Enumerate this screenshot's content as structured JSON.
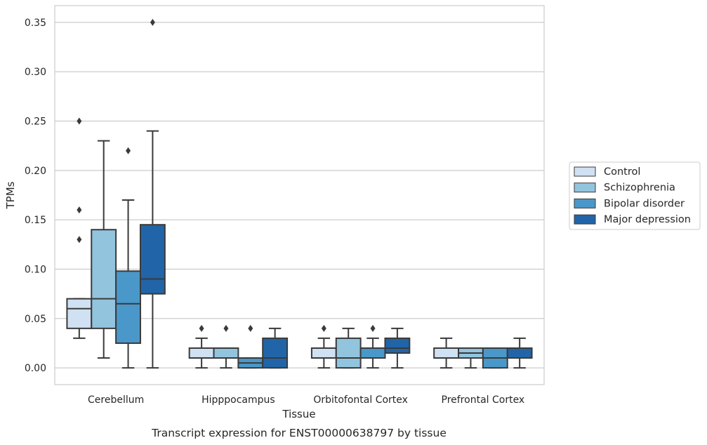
{
  "chart_data": {
    "type": "boxplot",
    "title": "",
    "caption": "Transcript expression for ENST00000638797 by tissue",
    "xlabel": "Tissue",
    "ylabel": "TPMs",
    "ylim": [
      -0.017,
      0.367
    ],
    "yticks": [
      "0.00",
      "0.05",
      "0.10",
      "0.15",
      "0.20",
      "0.25",
      "0.30",
      "0.35"
    ],
    "grid": "horizontal",
    "legend_position": "right",
    "categories": [
      "Cerebellum",
      "Hipppocampus",
      "Orbitofontal Cortex",
      "Prefrontal Cortex"
    ],
    "series": [
      {
        "name": "Control",
        "color": "#cfe1f2",
        "boxes": [
          {
            "q1": 0.04,
            "median": 0.06,
            "q3": 0.07,
            "whisker_low": 0.03,
            "whisker_high": 0.07,
            "outliers": [
              0.13,
              0.16,
              0.25
            ]
          },
          {
            "q1": 0.01,
            "median": 0.01,
            "q3": 0.02,
            "whisker_low": 0.0,
            "whisker_high": 0.03,
            "outliers": [
              0.04
            ]
          },
          {
            "q1": 0.01,
            "median": 0.01,
            "q3": 0.02,
            "whisker_low": 0.0,
            "whisker_high": 0.03,
            "outliers": [
              0.04
            ]
          },
          {
            "q1": 0.01,
            "median": 0.01,
            "q3": 0.02,
            "whisker_low": 0.0,
            "whisker_high": 0.03,
            "outliers": []
          }
        ]
      },
      {
        "name": "Schizophrenia",
        "color": "#93c4de",
        "boxes": [
          {
            "q1": 0.04,
            "median": 0.07,
            "q3": 0.14,
            "whisker_low": 0.01,
            "whisker_high": 0.23,
            "outliers": []
          },
          {
            "q1": 0.01,
            "median": 0.01,
            "q3": 0.02,
            "whisker_low": 0.0,
            "whisker_high": 0.02,
            "outliers": [
              0.04
            ]
          },
          {
            "q1": 0.0,
            "median": 0.01,
            "q3": 0.03,
            "whisker_low": 0.0,
            "whisker_high": 0.04,
            "outliers": []
          },
          {
            "q1": 0.01,
            "median": 0.015,
            "q3": 0.02,
            "whisker_low": 0.0,
            "whisker_high": 0.02,
            "outliers": []
          }
        ]
      },
      {
        "name": "Bipolar disorder",
        "color": "#4a98c9",
        "boxes": [
          {
            "q1": 0.025,
            "median": 0.065,
            "q3": 0.098,
            "whisker_low": 0.0,
            "whisker_high": 0.17,
            "outliers": [
              0.22
            ]
          },
          {
            "q1": 0.0,
            "median": 0.005,
            "q3": 0.01,
            "whisker_low": 0.0,
            "whisker_high": 0.01,
            "outliers": [
              0.04
            ]
          },
          {
            "q1": 0.01,
            "median": 0.02,
            "q3": 0.02,
            "whisker_low": 0.0,
            "whisker_high": 0.03,
            "outliers": [
              0.04
            ]
          },
          {
            "q1": 0.0,
            "median": 0.01,
            "q3": 0.02,
            "whisker_low": 0.0,
            "whisker_high": 0.02,
            "outliers": []
          }
        ]
      },
      {
        "name": "Major depression",
        "color": "#2165a8",
        "boxes": [
          {
            "q1": 0.075,
            "median": 0.09,
            "q3": 0.145,
            "whisker_low": 0.0,
            "whisker_high": 0.24,
            "outliers": [
              0.35
            ]
          },
          {
            "q1": 0.0,
            "median": 0.01,
            "q3": 0.03,
            "whisker_low": 0.0,
            "whisker_high": 0.04,
            "outliers": []
          },
          {
            "q1": 0.015,
            "median": 0.02,
            "q3": 0.03,
            "whisker_low": 0.0,
            "whisker_high": 0.04,
            "outliers": []
          },
          {
            "q1": 0.01,
            "median": 0.02,
            "q3": 0.02,
            "whisker_low": 0.0,
            "whisker_high": 0.03,
            "outliers": []
          }
        ]
      }
    ]
  }
}
